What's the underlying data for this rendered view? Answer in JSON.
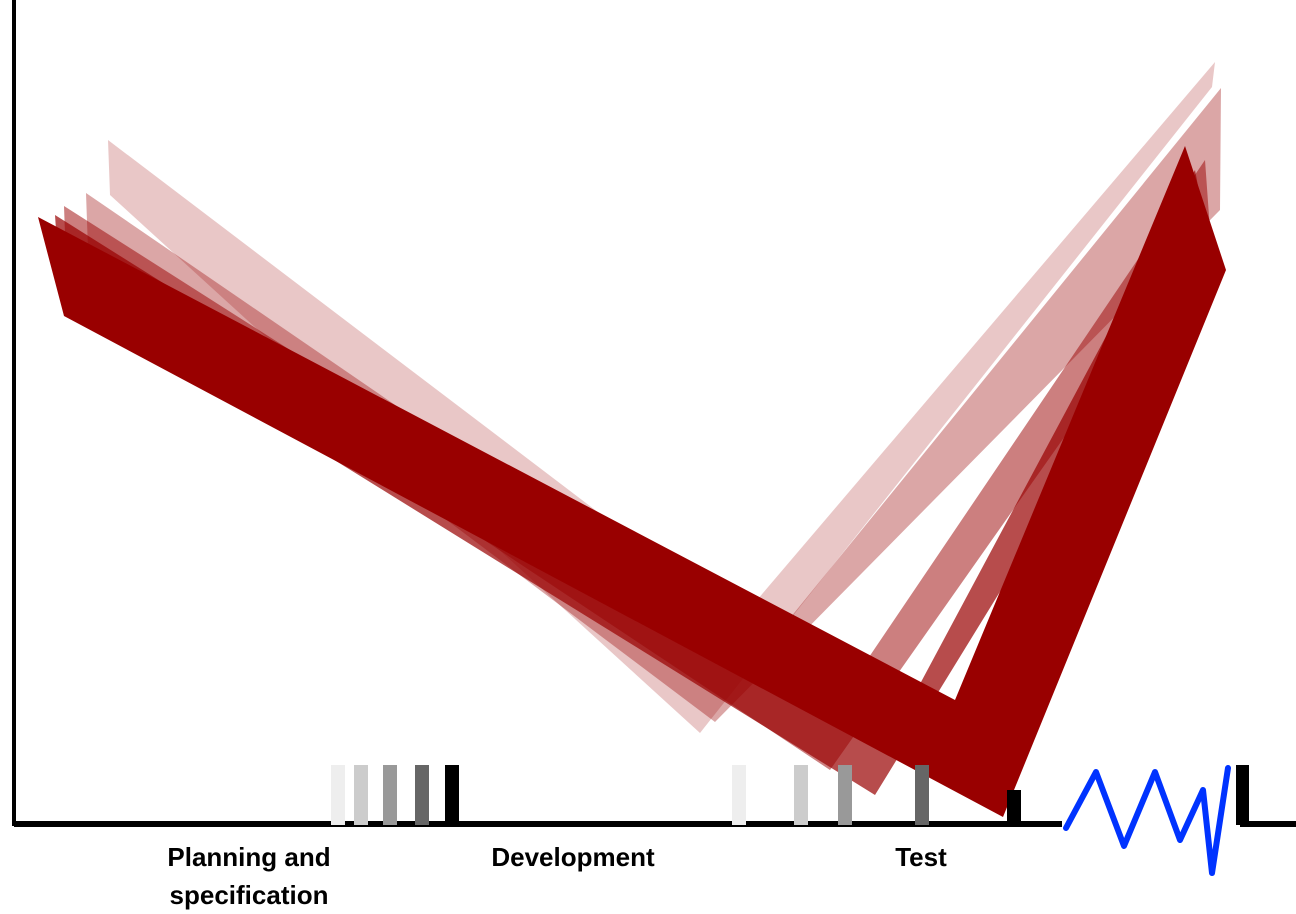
{
  "phases": {
    "planning": {
      "line1": "Planning and",
      "line2": "specification"
    },
    "development": {
      "label": "Development"
    },
    "test": {
      "label": "Test"
    }
  },
  "colors": {
    "band": "#990000",
    "axis": "#000000",
    "squiggle": "#0033ff",
    "marker_shades": [
      "#eeeeee",
      "#cccccc",
      "#999999",
      "#666666",
      "#000000"
    ]
  },
  "band_layers": [
    {
      "name": "band-ghost-1",
      "opacity": 0.22
    },
    {
      "name": "band-ghost-2",
      "opacity": 0.35
    },
    {
      "name": "band-ghost-3",
      "opacity": 0.5
    },
    {
      "name": "band-ghost-4",
      "opacity": 0.7
    },
    {
      "name": "band-main",
      "opacity": 1
    }
  ]
}
